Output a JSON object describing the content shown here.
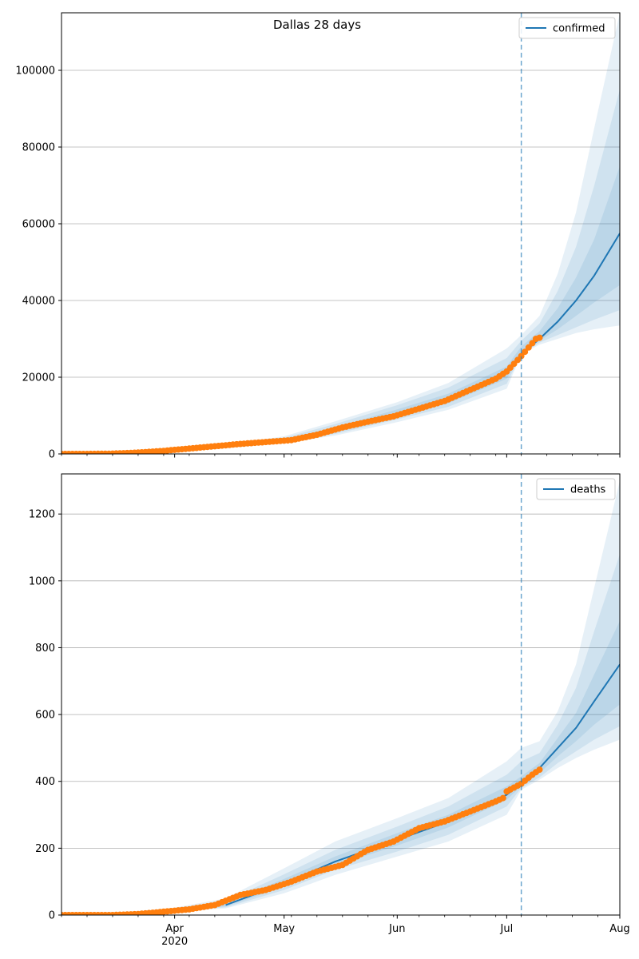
{
  "figure_title": "Dallas 28 days",
  "colors": {
    "line": "#1f77b4",
    "band": "#1f77b4",
    "observed": "#ff7f0e",
    "grid": "#b0b0b0",
    "vline": "#1f77b4"
  },
  "chart_data": [
    {
      "type": "line",
      "legend": "confirmed",
      "legend_loc": "top-right",
      "x_range": [
        "2020-03-01",
        "2020-08-01"
      ],
      "xticks": [
        {
          "date": "2020-04-01",
          "label": "Apr",
          "sublabel": "2020"
        },
        {
          "date": "2020-05-01",
          "label": "May",
          "sublabel": ""
        },
        {
          "date": "2020-06-01",
          "label": "Jun",
          "sublabel": ""
        },
        {
          "date": "2020-07-01",
          "label": "Jul",
          "sublabel": ""
        },
        {
          "date": "2020-08-01",
          "label": "Aug",
          "sublabel": ""
        }
      ],
      "ylim": [
        0,
        115000
      ],
      "yticks": [
        0,
        20000,
        40000,
        60000,
        80000,
        100000
      ],
      "grid": "horizontal",
      "forecast_start": "2020-07-05",
      "observed": {
        "x": [
          "2020-03-01",
          "2020-03-08",
          "2020-03-15",
          "2020-03-22",
          "2020-03-29",
          "2020-04-05",
          "2020-04-12",
          "2020-04-19",
          "2020-04-26",
          "2020-05-03",
          "2020-05-10",
          "2020-05-17",
          "2020-05-24",
          "2020-05-31",
          "2020-06-07",
          "2020-06-14",
          "2020-06-21",
          "2020-06-28",
          "2020-07-01",
          "2020-07-05",
          "2020-07-09",
          "2020-07-10"
        ],
        "y": [
          0,
          5,
          80,
          350,
          800,
          1400,
          2000,
          2600,
          3100,
          3600,
          5000,
          6900,
          8400,
          9800,
          11800,
          13800,
          16700,
          19600,
          21500,
          25500,
          30000,
          30300
        ]
      },
      "median": {
        "x": [
          "2020-05-01",
          "2020-05-15",
          "2020-06-01",
          "2020-06-15",
          "2020-07-01",
          "2020-07-05",
          "2020-07-10",
          "2020-07-15",
          "2020-07-20",
          "2020-07-25",
          "2020-08-01"
        ],
        "y": [
          3600,
          6200,
          10500,
          14000,
          21000,
          26000,
          30000,
          34500,
          40000,
          46500,
          57500
        ]
      },
      "bands": [
        {
          "x": [
            "2020-04-15",
            "2020-05-01",
            "2020-05-15",
            "2020-06-01",
            "2020-06-15",
            "2020-07-01",
            "2020-07-05",
            "2020-07-10",
            "2020-07-15",
            "2020-07-20",
            "2020-07-25",
            "2020-08-01"
          ],
          "lower": [
            1500,
            2800,
            4800,
            8300,
            11500,
            17000,
            26000,
            28500,
            30000,
            31500,
            32500,
            33500
          ],
          "upper": [
            2400,
            4600,
            8500,
            13500,
            18500,
            27500,
            31000,
            36000,
            47000,
            63000,
            85000,
            115000
          ]
        },
        {
          "x": [
            "2020-04-15",
            "2020-05-01",
            "2020-05-15",
            "2020-06-01",
            "2020-06-15",
            "2020-07-01",
            "2020-07-05",
            "2020-07-10",
            "2020-07-15",
            "2020-07-20",
            "2020-07-25",
            "2020-08-01"
          ],
          "lower": [
            1700,
            3100,
            5200,
            9000,
            12300,
            18300,
            26000,
            29000,
            31000,
            33000,
            35000,
            37500
          ],
          "upper": [
            2200,
            4200,
            7800,
            12700,
            17300,
            25000,
            29500,
            34000,
            42500,
            54000,
            70000,
            95000
          ]
        },
        {
          "x": [
            "2020-04-15",
            "2020-05-01",
            "2020-05-15",
            "2020-06-01",
            "2020-06-15",
            "2020-07-01",
            "2020-07-05",
            "2020-07-10",
            "2020-07-15",
            "2020-07-20",
            "2020-07-25",
            "2020-08-01"
          ],
          "lower": [
            1850,
            3350,
            5700,
            9800,
            13200,
            19600,
            26000,
            29500,
            32500,
            36000,
            39500,
            44000
          ],
          "upper": [
            2050,
            3850,
            6900,
            11600,
            15700,
            22800,
            28000,
            32000,
            38000,
            46000,
            56000,
            75000
          ]
        }
      ]
    },
    {
      "type": "line",
      "legend": "deaths",
      "legend_loc": "top-right",
      "x_range": [
        "2020-03-01",
        "2020-08-01"
      ],
      "xticks": [
        {
          "date": "2020-04-01",
          "label": "Apr",
          "sublabel": "2020"
        },
        {
          "date": "2020-05-01",
          "label": "May",
          "sublabel": ""
        },
        {
          "date": "2020-06-01",
          "label": "Jun",
          "sublabel": ""
        },
        {
          "date": "2020-07-01",
          "label": "Jul",
          "sublabel": ""
        },
        {
          "date": "2020-08-01",
          "label": "Aug",
          "sublabel": ""
        }
      ],
      "ylim": [
        0,
        1320
      ],
      "yticks": [
        0,
        200,
        400,
        600,
        800,
        1000,
        1200
      ],
      "grid": "horizontal",
      "forecast_start": "2020-07-05",
      "observed": {
        "x": [
          "2020-03-01",
          "2020-03-15",
          "2020-03-22",
          "2020-03-29",
          "2020-04-05",
          "2020-04-12",
          "2020-04-19",
          "2020-04-26",
          "2020-05-03",
          "2020-05-10",
          "2020-05-17",
          "2020-05-24",
          "2020-05-31",
          "2020-06-07",
          "2020-06-14",
          "2020-06-21",
          "2020-06-28",
          "2020-06-30",
          "2020-07-01",
          "2020-07-05",
          "2020-07-08",
          "2020-07-10"
        ],
        "y": [
          0,
          0,
          3,
          10,
          17,
          30,
          60,
          75,
          100,
          130,
          150,
          195,
          220,
          260,
          280,
          310,
          340,
          350,
          370,
          393,
          420,
          435
        ]
      },
      "median": {
        "x": [
          "2020-04-15",
          "2020-05-01",
          "2020-05-15",
          "2020-06-01",
          "2020-06-15",
          "2020-07-01",
          "2020-07-05",
          "2020-07-10",
          "2020-07-15",
          "2020-07-20",
          "2020-07-25",
          "2020-08-01"
        ],
        "y": [
          30,
          95,
          160,
          225,
          280,
          360,
          395,
          440,
          500,
          560,
          640,
          750
        ]
      },
      "bands": [
        {
          "x": [
            "2020-04-01",
            "2020-04-15",
            "2020-05-01",
            "2020-05-15",
            "2020-06-01",
            "2020-06-15",
            "2020-07-01",
            "2020-07-05",
            "2020-07-10",
            "2020-07-15",
            "2020-07-20",
            "2020-07-25",
            "2020-08-01"
          ],
          "lower": [
            10,
            20,
            65,
            120,
            175,
            220,
            300,
            375,
            405,
            440,
            470,
            495,
            525
          ],
          "upper": [
            22,
            50,
            140,
            220,
            290,
            350,
            460,
            500,
            520,
            610,
            750,
            980,
            1300
          ]
        },
        {
          "x": [
            "2020-04-01",
            "2020-04-15",
            "2020-05-01",
            "2020-05-15",
            "2020-06-01",
            "2020-06-15",
            "2020-07-01",
            "2020-07-05",
            "2020-07-10",
            "2020-07-15",
            "2020-07-20",
            "2020-07-25",
            "2020-08-01"
          ],
          "lower": [
            12,
            23,
            75,
            135,
            190,
            240,
            325,
            380,
            412,
            455,
            490,
            525,
            565
          ],
          "upper": [
            20,
            42,
            122,
            195,
            265,
            325,
            420,
            460,
            485,
            570,
            680,
            850,
            1080
          ]
        },
        {
          "x": [
            "2020-04-01",
            "2020-04-15",
            "2020-05-01",
            "2020-05-15",
            "2020-06-01",
            "2020-06-15",
            "2020-07-01",
            "2020-07-05",
            "2020-07-10",
            "2020-07-15",
            "2020-07-20",
            "2020-07-25",
            "2020-08-01"
          ],
          "lower": [
            14,
            26,
            85,
            148,
            208,
            262,
            345,
            385,
            425,
            475,
            520,
            570,
            630
          ],
          "upper": [
            18,
            36,
            108,
            175,
            245,
            300,
            385,
            415,
            455,
            530,
            605,
            720,
            880
          ]
        }
      ]
    }
  ]
}
